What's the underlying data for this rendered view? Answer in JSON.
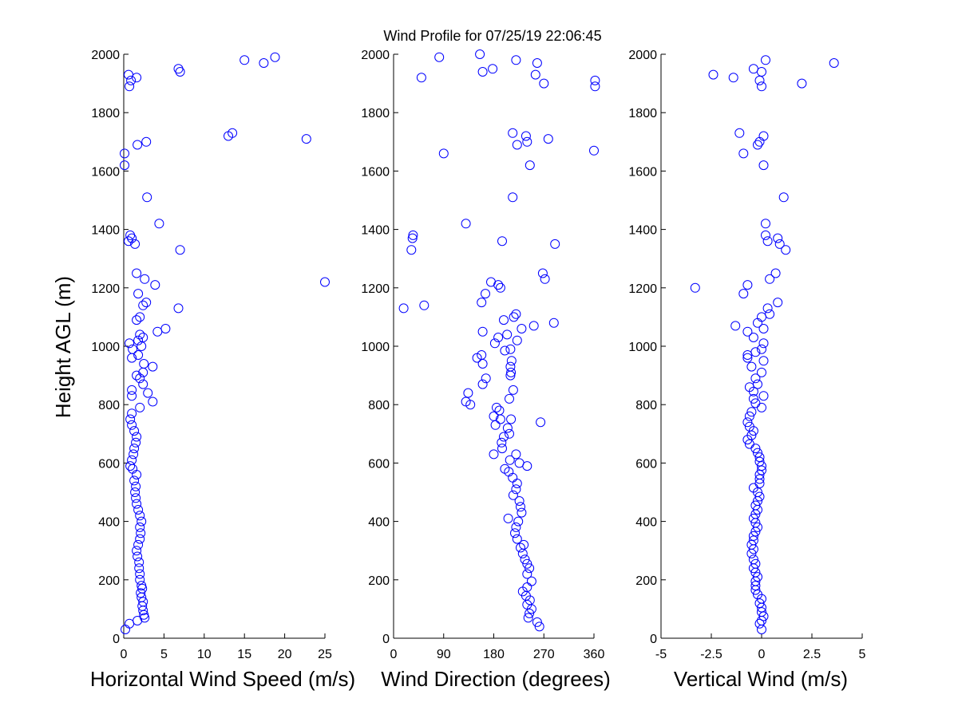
{
  "title": "Wind Profile for  07/25/19 22:06:45",
  "ylabel": "Height AGL (m)",
  "colors": {
    "marker": "#0000ff",
    "axis": "#000000",
    "background": "#ffffff"
  },
  "chart_data": [
    {
      "type": "scatter",
      "xlabel": "Horizontal Wind Speed (m/s)",
      "ylabel": "Height AGL (m)",
      "xlim": [
        0,
        25
      ],
      "ylim": [
        0,
        2000
      ],
      "xticks": [
        0,
        5,
        10,
        15,
        20,
        25
      ],
      "xtick_labels": [
        "0",
        "5",
        "10",
        "15",
        "20",
        "25"
      ],
      "yticks": [
        0,
        200,
        400,
        600,
        800,
        1000,
        1200,
        1400,
        1600,
        1800,
        2000
      ],
      "ytick_labels": [
        "0",
        "200",
        "400",
        "600",
        "800",
        "1000",
        "1200",
        "1400",
        "1600",
        "1800",
        "2000"
      ],
      "marker": "open-circle",
      "points": [
        [
          0.2,
          30
        ],
        [
          0.7,
          50
        ],
        [
          1.7,
          60
        ],
        [
          2.6,
          70
        ],
        [
          2.5,
          80
        ],
        [
          2.4,
          95
        ],
        [
          2.3,
          110
        ],
        [
          2.4,
          125
        ],
        [
          2.2,
          140
        ],
        [
          2.1,
          155
        ],
        [
          2.3,
          170
        ],
        [
          2.2,
          180
        ],
        [
          2.0,
          200
        ],
        [
          2.0,
          220
        ],
        [
          1.9,
          240
        ],
        [
          1.9,
          260
        ],
        [
          1.7,
          280
        ],
        [
          1.6,
          300
        ],
        [
          1.8,
          320
        ],
        [
          2.0,
          340
        ],
        [
          2.1,
          360
        ],
        [
          2.0,
          380
        ],
        [
          2.2,
          400
        ],
        [
          2.0,
          420
        ],
        [
          1.8,
          440
        ],
        [
          1.6,
          460
        ],
        [
          1.5,
          480
        ],
        [
          1.4,
          500
        ],
        [
          1.5,
          520
        ],
        [
          1.3,
          540
        ],
        [
          1.6,
          560
        ],
        [
          1.1,
          580
        ],
        [
          0.8,
          590
        ],
        [
          1.0,
          610
        ],
        [
          1.2,
          630
        ],
        [
          1.3,
          650
        ],
        [
          1.5,
          670
        ],
        [
          1.6,
          690
        ],
        [
          1.3,
          710
        ],
        [
          1.0,
          730
        ],
        [
          0.8,
          750
        ],
        [
          1.0,
          770
        ],
        [
          2.0,
          790
        ],
        [
          3.6,
          810
        ],
        [
          1.0,
          830
        ],
        [
          1.0,
          850
        ],
        [
          3.0,
          840
        ],
        [
          2.4,
          870
        ],
        [
          2.0,
          890
        ],
        [
          1.6,
          900
        ],
        [
          2.4,
          910
        ],
        [
          3.6,
          930
        ],
        [
          2.5,
          940
        ],
        [
          1.0,
          960
        ],
        [
          1.8,
          970
        ],
        [
          1.1,
          990
        ],
        [
          2.2,
          1000
        ],
        [
          0.7,
          1010
        ],
        [
          1.8,
          1020
        ],
        [
          2.4,
          1030
        ],
        [
          2.0,
          1040
        ],
        [
          4.2,
          1050
        ],
        [
          5.2,
          1060
        ],
        [
          1.6,
          1090
        ],
        [
          2.0,
          1100
        ],
        [
          2.4,
          1140
        ],
        [
          6.8,
          1130
        ],
        [
          2.8,
          1150
        ],
        [
          1.8,
          1180
        ],
        [
          3.9,
          1210
        ],
        [
          25.0,
          1220
        ],
        [
          2.6,
          1230
        ],
        [
          1.6,
          1250
        ],
        [
          7.0,
          1330
        ],
        [
          1.4,
          1350
        ],
        [
          0.6,
          1360
        ],
        [
          1.0,
          1370
        ],
        [
          0.8,
          1380
        ],
        [
          4.4,
          1420
        ],
        [
          2.9,
          1510
        ],
        [
          0.1,
          1620
        ],
        [
          0.1,
          1660
        ],
        [
          1.7,
          1690
        ],
        [
          2.8,
          1700
        ],
        [
          22.7,
          1710
        ],
        [
          13.0,
          1720
        ],
        [
          13.5,
          1730
        ],
        [
          0.7,
          1890
        ],
        [
          1.6,
          1920
        ],
        [
          0.9,
          1910
        ],
        [
          0.6,
          1930
        ],
        [
          7.0,
          1940
        ],
        [
          6.8,
          1950
        ],
        [
          15.0,
          1980
        ],
        [
          17.4,
          1970
        ],
        [
          18.8,
          1990
        ]
      ]
    },
    {
      "type": "scatter",
      "xlabel": "Wind Direction (degrees)",
      "ylabel": "",
      "xlim": [
        0,
        360
      ],
      "ylim": [
        0,
        2000
      ],
      "xticks": [
        0,
        90,
        180,
        270,
        360
      ],
      "xtick_labels": [
        "0",
        "90",
        "180",
        "270",
        "360"
      ],
      "yticks": [
        0,
        200,
        400,
        600,
        800,
        1000,
        1200,
        1400,
        1600,
        1800,
        2000
      ],
      "ytick_labels": [
        "0",
        "200",
        "400",
        "600",
        "800",
        "1000",
        "1200",
        "1400",
        "1600",
        "1800",
        "2000"
      ],
      "marker": "open-circle",
      "points": [
        [
          262,
          40
        ],
        [
          258,
          55
        ],
        [
          242,
          70
        ],
        [
          244,
          85
        ],
        [
          248,
          100
        ],
        [
          240,
          115
        ],
        [
          245,
          130
        ],
        [
          238,
          145
        ],
        [
          232,
          160
        ],
        [
          240,
          175
        ],
        [
          248,
          195
        ],
        [
          240,
          220
        ],
        [
          244,
          240
        ],
        [
          240,
          255
        ],
        [
          236,
          270
        ],
        [
          232,
          290
        ],
        [
          228,
          310
        ],
        [
          234,
          320
        ],
        [
          222,
          340
        ],
        [
          218,
          360
        ],
        [
          220,
          380
        ],
        [
          224,
          400
        ],
        [
          206,
          410
        ],
        [
          230,
          430
        ],
        [
          228,
          450
        ],
        [
          226,
          470
        ],
        [
          215,
          490
        ],
        [
          220,
          510
        ],
        [
          222,
          530
        ],
        [
          214,
          550
        ],
        [
          207,
          570
        ],
        [
          200,
          580
        ],
        [
          226,
          600
        ],
        [
          240,
          590
        ],
        [
          209,
          610
        ],
        [
          220,
          630
        ],
        [
          180,
          630
        ],
        [
          195,
          650
        ],
        [
          194,
          670
        ],
        [
          198,
          690
        ],
        [
          208,
          700
        ],
        [
          205,
          720
        ],
        [
          183,
          730
        ],
        [
          192,
          750
        ],
        [
          211,
          750
        ],
        [
          264,
          740
        ],
        [
          180,
          760
        ],
        [
          190,
          780
        ],
        [
          185,
          790
        ],
        [
          138,
          800
        ],
        [
          130,
          810
        ],
        [
          208,
          820
        ],
        [
          134,
          840
        ],
        [
          215,
          850
        ],
        [
          160,
          870
        ],
        [
          166,
          890
        ],
        [
          210,
          900
        ],
        [
          211,
          910
        ],
        [
          210,
          930
        ],
        [
          160,
          940
        ],
        [
          212,
          950
        ],
        [
          150,
          960
        ],
        [
          158,
          970
        ],
        [
          200,
          985
        ],
        [
          210,
          990
        ],
        [
          182,
          1010
        ],
        [
          222,
          1020
        ],
        [
          188,
          1030
        ],
        [
          160,
          1050
        ],
        [
          204,
          1040
        ],
        [
          230,
          1060
        ],
        [
          252,
          1070
        ],
        [
          288,
          1080
        ],
        [
          198,
          1090
        ],
        [
          216,
          1100
        ],
        [
          220,
          1110
        ],
        [
          158,
          1150
        ],
        [
          18,
          1130
        ],
        [
          55,
          1140
        ],
        [
          165,
          1180
        ],
        [
          192,
          1200
        ],
        [
          188,
          1210
        ],
        [
          175,
          1220
        ],
        [
          272,
          1230
        ],
        [
          268,
          1250
        ],
        [
          32,
          1330
        ],
        [
          290,
          1350
        ],
        [
          34,
          1370
        ],
        [
          35,
          1380
        ],
        [
          130,
          1420
        ],
        [
          195,
          1360
        ],
        [
          214,
          1510
        ],
        [
          245,
          1620
        ],
        [
          90,
          1660
        ],
        [
          360,
          1670
        ],
        [
          222,
          1690
        ],
        [
          240,
          1700
        ],
        [
          278,
          1710
        ],
        [
          238,
          1720
        ],
        [
          214,
          1730
        ],
        [
          50,
          1920
        ],
        [
          255,
          1930
        ],
        [
          258,
          1970
        ],
        [
          160,
          1940
        ],
        [
          178,
          1950
        ],
        [
          270,
          1900
        ],
        [
          362,
          1890
        ],
        [
          362,
          1910
        ],
        [
          220,
          1980
        ],
        [
          82,
          1990
        ],
        [
          155,
          2000
        ]
      ]
    },
    {
      "type": "scatter",
      "xlabel": "Vertical Wind (m/s)",
      "ylabel": "",
      "xlim": [
        -5,
        5
      ],
      "ylim": [
        0,
        2000
      ],
      "xticks": [
        -5,
        -2.5,
        0,
        2.5,
        5
      ],
      "xtick_labels": [
        "-5",
        "-2.5",
        "0",
        "2.5",
        "5"
      ],
      "yticks": [
        0,
        200,
        400,
        600,
        800,
        1000,
        1200,
        1400,
        1600,
        1800,
        2000
      ],
      "ytick_labels": [
        "0",
        "200",
        "400",
        "600",
        "800",
        "1000",
        "1200",
        "1400",
        "1600",
        "1800",
        "2000"
      ],
      "marker": "open-circle",
      "points": [
        [
          0.0,
          30
        ],
        [
          -0.1,
          50
        ],
        [
          0.0,
          60
        ],
        [
          0.1,
          75
        ],
        [
          0.0,
          90
        ],
        [
          0.0,
          105
        ],
        [
          -0.1,
          120
        ],
        [
          0.0,
          135
        ],
        [
          -0.2,
          150
        ],
        [
          -0.3,
          165
        ],
        [
          -0.3,
          180
        ],
        [
          -0.3,
          195
        ],
        [
          -0.2,
          210
        ],
        [
          -0.3,
          225
        ],
        [
          -0.4,
          240
        ],
        [
          -0.3,
          255
        ],
        [
          -0.4,
          270
        ],
        [
          -0.5,
          290
        ],
        [
          -0.4,
          305
        ],
        [
          -0.5,
          320
        ],
        [
          -0.4,
          335
        ],
        [
          -0.4,
          350
        ],
        [
          -0.3,
          365
        ],
        [
          -0.2,
          380
        ],
        [
          -0.3,
          395
        ],
        [
          -0.4,
          410
        ],
        [
          -0.3,
          425
        ],
        [
          -0.2,
          440
        ],
        [
          -0.3,
          455
        ],
        [
          -0.2,
          470
        ],
        [
          -0.1,
          485
        ],
        [
          -0.2,
          500
        ],
        [
          -0.4,
          515
        ],
        [
          -0.1,
          530
        ],
        [
          -0.1,
          545
        ],
        [
          -0.1,
          560
        ],
        [
          0.0,
          575
        ],
        [
          0.0,
          590
        ],
        [
          -0.1,
          605
        ],
        [
          -0.1,
          620
        ],
        [
          -0.2,
          635
        ],
        [
          -0.3,
          650
        ],
        [
          -0.6,
          665
        ],
        [
          -0.7,
          680
        ],
        [
          -0.5,
          695
        ],
        [
          -0.4,
          710
        ],
        [
          -0.6,
          725
        ],
        [
          -0.7,
          740
        ],
        [
          -0.6,
          760
        ],
        [
          -0.5,
          775
        ],
        [
          0.0,
          790
        ],
        [
          -0.3,
          805
        ],
        [
          -0.4,
          820
        ],
        [
          0.1,
          830
        ],
        [
          -0.4,
          845
        ],
        [
          -0.6,
          860
        ],
        [
          -0.2,
          870
        ],
        [
          -0.3,
          890
        ],
        [
          0.0,
          910
        ],
        [
          -0.5,
          930
        ],
        [
          0.1,
          950
        ],
        [
          -0.7,
          960
        ],
        [
          -0.7,
          970
        ],
        [
          -0.3,
          980
        ],
        [
          0.0,
          990
        ],
        [
          0.1,
          1010
        ],
        [
          -0.4,
          1030
        ],
        [
          -0.7,
          1050
        ],
        [
          0.1,
          1060
        ],
        [
          -1.3,
          1070
        ],
        [
          -0.2,
          1080
        ],
        [
          0.0,
          1100
        ],
        [
          0.4,
          1110
        ],
        [
          0.3,
          1130
        ],
        [
          0.8,
          1150
        ],
        [
          -0.9,
          1180
        ],
        [
          -0.7,
          1210
        ],
        [
          -3.3,
          1200
        ],
        [
          0.4,
          1230
        ],
        [
          0.7,
          1250
        ],
        [
          1.2,
          1330
        ],
        [
          0.9,
          1350
        ],
        [
          0.8,
          1370
        ],
        [
          0.3,
          1360
        ],
        [
          0.2,
          1380
        ],
        [
          0.2,
          1420
        ],
        [
          1.1,
          1510
        ],
        [
          0.1,
          1620
        ],
        [
          -0.9,
          1660
        ],
        [
          -0.2,
          1690
        ],
        [
          -0.1,
          1700
        ],
        [
          -1.1,
          1730
        ],
        [
          0.1,
          1720
        ],
        [
          0.0,
          1890
        ],
        [
          2.0,
          1900
        ],
        [
          -0.1,
          1910
        ],
        [
          -1.4,
          1920
        ],
        [
          -2.4,
          1930
        ],
        [
          0.0,
          1940
        ],
        [
          -0.4,
          1950
        ],
        [
          3.6,
          1970
        ],
        [
          0.2,
          1980
        ]
      ]
    }
  ]
}
